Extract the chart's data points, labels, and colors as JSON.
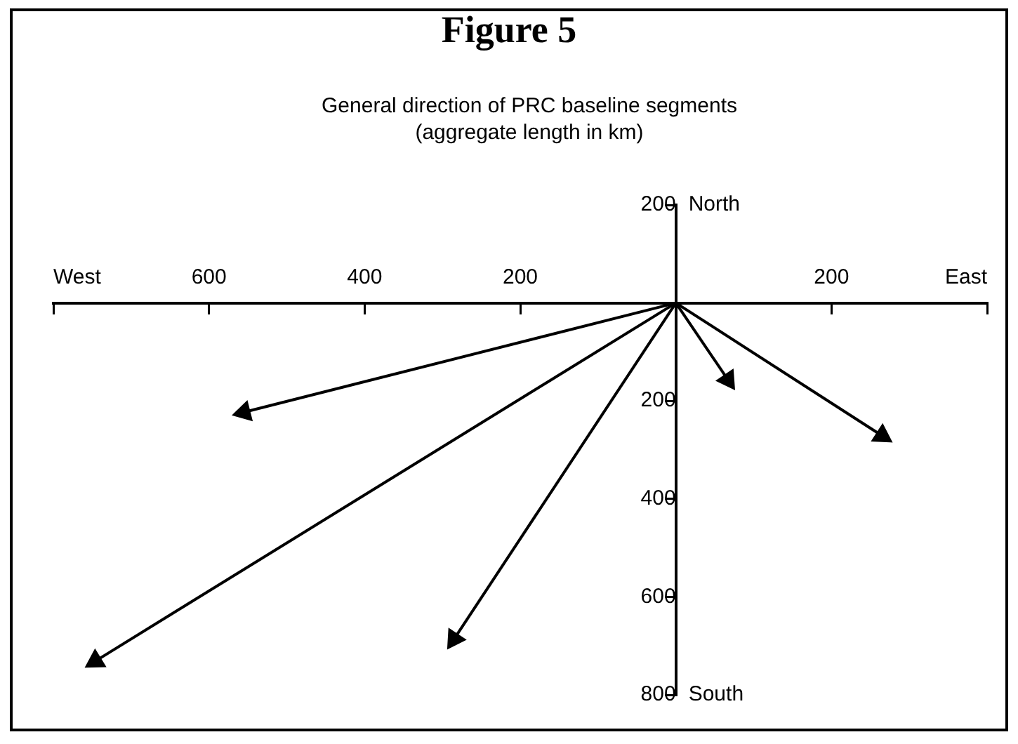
{
  "chart_data": {
    "type": "line",
    "title": "Figure 5",
    "subtitle": "General direction of PRC baseline segments (aggregate length in km)",
    "xlim": [
      -800,
      400
    ],
    "xticks": [
      {
        "value": -800,
        "label": "West"
      },
      {
        "value": -600,
        "label": "600"
      },
      {
        "value": -400,
        "label": "400"
      },
      {
        "value": -200,
        "label": "200"
      },
      {
        "value": 200,
        "label": "200"
      },
      {
        "value": 400,
        "label": "East"
      }
    ],
    "ylim": [
      800,
      -200
    ],
    "yticks": [
      {
        "value": -200,
        "label": "200"
      },
      {
        "value": 200,
        "label": "200"
      },
      {
        "value": 400,
        "label": "400"
      },
      {
        "value": 600,
        "label": "600"
      },
      {
        "value": 800,
        "label": "800"
      }
    ],
    "annotations": [
      "North",
      "South"
    ],
    "marker": "triangle",
    "grid": false,
    "legend": false,
    "series": [
      {
        "color": "#000000",
        "x": [
          0,
          -555
        ],
        "values": [
          0,
          223
        ]
      },
      {
        "color": "#000000",
        "x": [
          0,
          -746
        ],
        "values": [
          0,
          731
        ]
      },
      {
        "color": "#000000",
        "x": [
          0,
          -285
        ],
        "values": [
          0,
          686
        ]
      },
      {
        "color": "#000000",
        "x": [
          0,
          67
        ],
        "values": [
          0,
          157
        ]
      },
      {
        "color": "#000000",
        "x": [
          0,
          265
        ],
        "values": [
          0,
          271
        ]
      }
    ]
  }
}
